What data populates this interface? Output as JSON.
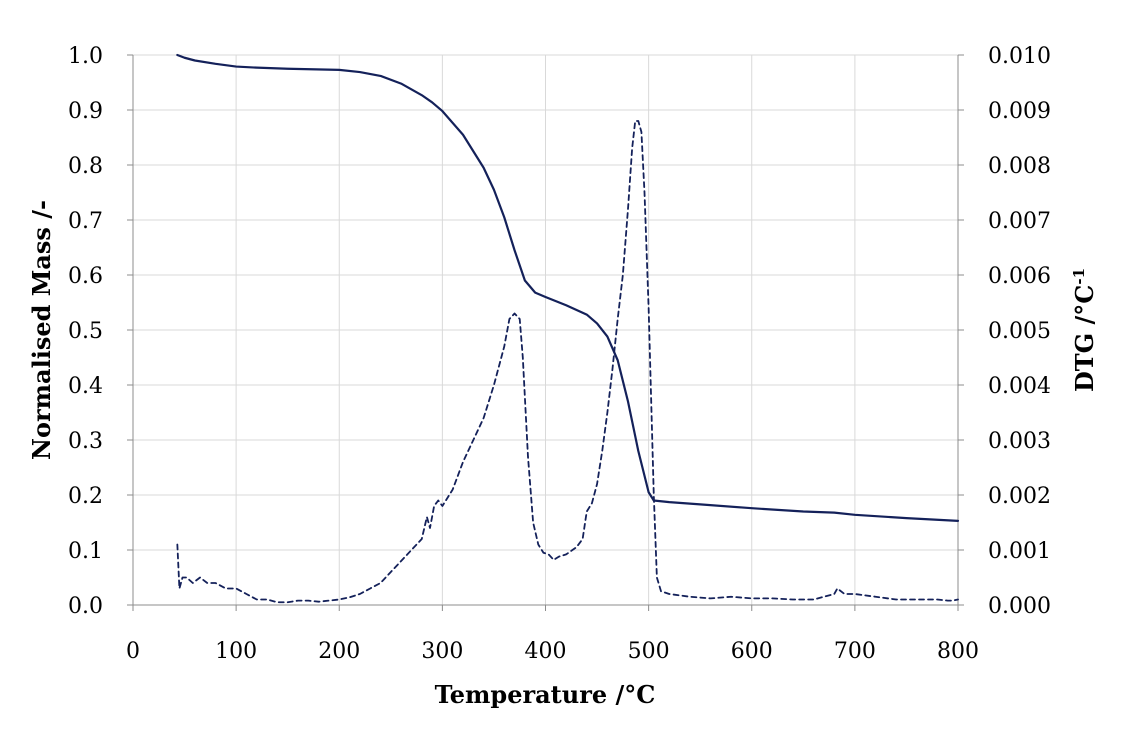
{
  "chart_data": {
    "type": "line",
    "xlabel": "Temperature /°C",
    "ylabel": "Normalised Mass /-",
    "y2label_main": "DTG  /°C",
    "y2label_sup": "-1",
    "xlim": [
      0,
      800
    ],
    "ylim": [
      0,
      1.0
    ],
    "y2lim": [
      0,
      0.01
    ],
    "grid": true,
    "colors": {
      "line": "#14215a",
      "grid": "#d9d9d9",
      "axis": "#8c8c8c"
    },
    "x_ticks": [
      "0",
      "100",
      "200",
      "300",
      "400",
      "500",
      "600",
      "700",
      "800"
    ],
    "y_ticks": [
      "0.0",
      "0.1",
      "0.2",
      "0.3",
      "0.4",
      "0.5",
      "0.6",
      "0.7",
      "0.8",
      "0.9",
      "1.0"
    ],
    "y2_ticks": [
      "0.000",
      "0.001",
      "0.002",
      "0.003",
      "0.004",
      "0.005",
      "0.006",
      "0.007",
      "0.008",
      "0.009",
      "0.010"
    ],
    "series": [
      {
        "axis": "left",
        "style": "solid",
        "x": [
          43,
          50,
          60,
          80,
          100,
          120,
          150,
          200,
          220,
          240,
          260,
          280,
          290,
          300,
          320,
          340,
          350,
          360,
          370,
          380,
          390,
          400,
          420,
          440,
          450,
          460,
          470,
          480,
          490,
          500,
          505,
          520,
          550,
          600,
          650,
          680,
          700,
          750,
          800
        ],
        "y": [
          1.0,
          0.995,
          0.99,
          0.984,
          0.979,
          0.977,
          0.975,
          0.973,
          0.969,
          0.962,
          0.948,
          0.927,
          0.914,
          0.898,
          0.855,
          0.795,
          0.755,
          0.705,
          0.645,
          0.59,
          0.568,
          0.56,
          0.545,
          0.528,
          0.512,
          0.488,
          0.445,
          0.37,
          0.28,
          0.205,
          0.19,
          0.187,
          0.183,
          0.176,
          0.17,
          0.168,
          0.164,
          0.158,
          0.153
        ]
      },
      {
        "axis": "right",
        "style": "dashed",
        "x": [
          43,
          45,
          48,
          52,
          58,
          65,
          72,
          80,
          90,
          100,
          110,
          120,
          130,
          140,
          150,
          160,
          170,
          180,
          190,
          200,
          210,
          220,
          230,
          240,
          250,
          260,
          270,
          280,
          285,
          288,
          292,
          296,
          300,
          310,
          320,
          330,
          340,
          350,
          360,
          365,
          370,
          375,
          378,
          383,
          388,
          393,
          398,
          403,
          408,
          413,
          420,
          430,
          436,
          440,
          445,
          450,
          455,
          460,
          465,
          470,
          475,
          480,
          484,
          487,
          490,
          493,
          496,
          500,
          505,
          508,
          512,
          520,
          540,
          560,
          580,
          600,
          620,
          640,
          660,
          670,
          680,
          683,
          690,
          700,
          720,
          740,
          760,
          780,
          790,
          795,
          800
        ],
        "y": [
          0.0011,
          0.0003,
          0.0005,
          0.0005,
          0.0004,
          0.0005,
          0.0004,
          0.0004,
          0.0003,
          0.0003,
          0.0002,
          0.0001,
          0.0001,
          5e-05,
          5e-05,
          8e-05,
          8e-05,
          6e-05,
          8e-05,
          0.0001,
          0.00014,
          0.0002,
          0.0003,
          0.0004,
          0.0006,
          0.0008,
          0.001,
          0.0012,
          0.0016,
          0.0014,
          0.0018,
          0.0019,
          0.0018,
          0.0021,
          0.0026,
          0.003,
          0.0034,
          0.004,
          0.0047,
          0.0052,
          0.0053,
          0.0052,
          0.0045,
          0.0027,
          0.0015,
          0.0011,
          0.00095,
          0.00092,
          0.00082,
          0.00088,
          0.00092,
          0.00105,
          0.0012,
          0.0017,
          0.00185,
          0.0022,
          0.0028,
          0.0035,
          0.0043,
          0.0052,
          0.006,
          0.0072,
          0.0083,
          0.0088,
          0.0088,
          0.0086,
          0.0075,
          0.0054,
          0.002,
          0.0005,
          0.00025,
          0.0002,
          0.00015,
          0.00012,
          0.00015,
          0.00012,
          0.00012,
          0.0001,
          0.0001,
          0.00015,
          0.0002,
          0.0003,
          0.0002,
          0.0002,
          0.00015,
          0.0001,
          0.0001,
          0.0001,
          8e-05,
          8e-05,
          0.0001
        ]
      }
    ]
  }
}
